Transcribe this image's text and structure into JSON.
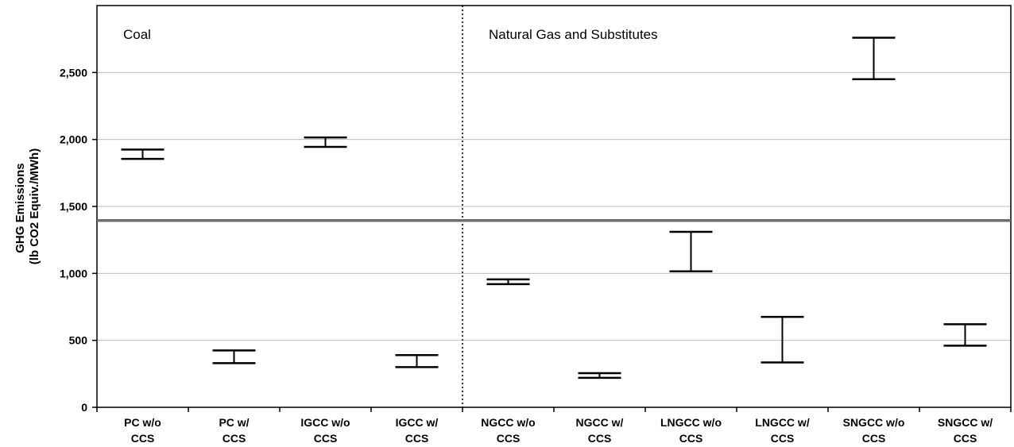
{
  "chart_data": {
    "type": "errorbar",
    "title": "",
    "ylabel_line1": "GHG Emissions",
    "ylabel_line2": "(lb CO2 Equiv./MWh)",
    "ylim": [
      0,
      3000
    ],
    "yticks": [
      0,
      500,
      1000,
      1500,
      2000,
      2500
    ],
    "ytick_labels": [
      "0",
      "500",
      "1,000",
      "1,500",
      "2,000",
      "2,500"
    ],
    "grid": true,
    "reference_line_y": 1395,
    "regions": [
      {
        "label": "Coal",
        "first_category": 0,
        "last_category": 3
      },
      {
        "label": "Natural Gas and Substitutes",
        "first_category": 4,
        "last_category": 9
      }
    ],
    "categories": [
      {
        "line1": "PC w/o",
        "line2": "CCS",
        "low": 1855,
        "high": 1925
      },
      {
        "line1": "PC w/",
        "line2": "CCS",
        "low": 330,
        "high": 425
      },
      {
        "line1": "IGCC w/o",
        "line2": "CCS",
        "low": 1945,
        "high": 2015
      },
      {
        "line1": "IGCC w/",
        "line2": "CCS",
        "low": 300,
        "high": 390
      },
      {
        "line1": "NGCC w/o",
        "line2": "CCS",
        "low": 920,
        "high": 955
      },
      {
        "line1": "NGCC w/",
        "line2": "CCS",
        "low": 220,
        "high": 255
      },
      {
        "line1": "LNGCC w/o",
        "line2": "CCS",
        "low": 1015,
        "high": 1310
      },
      {
        "line1": "LNGCC w/",
        "line2": "CCS",
        "low": 335,
        "high": 675
      },
      {
        "line1": "SNGCC w/o",
        "line2": "CCS",
        "low": 2450,
        "high": 2760
      },
      {
        "line1": "SNGCC w/",
        "line2": "CCS",
        "low": 460,
        "high": 620
      }
    ],
    "colors": {
      "bars": "#000000",
      "grid": "#bdbdbd",
      "reference_line": "#6e6e6e",
      "axis": "#000000"
    }
  }
}
